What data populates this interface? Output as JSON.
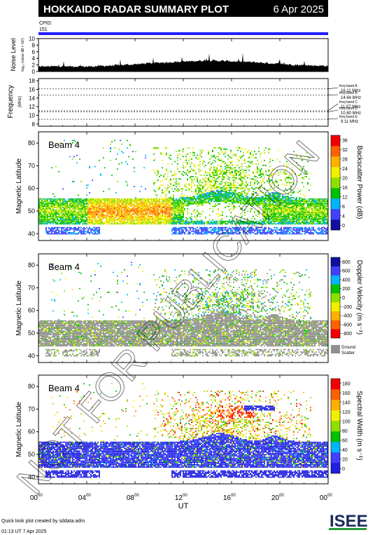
{
  "header": {
    "title": "HOKKAIDO RADAR SUMMARY PLOT",
    "date": "6 Apr 2025",
    "cpid_label": "CPID:",
    "cpid_value": "151"
  },
  "noise_panel": {
    "ylabel": "Noise Level",
    "ylabel_sub": "log₁₀ (noise dB × 10³)",
    "yticks": [
      "0",
      "2",
      "4",
      "6",
      "8",
      "10"
    ],
    "ylim": [
      0,
      10
    ]
  },
  "frequency_panel": {
    "ylabel": "Frequency",
    "ylabel_unit": "(MHz)",
    "yticks": [
      "8",
      "10",
      "12",
      "14",
      "16",
      "18"
    ],
    "ylim": [
      7.5,
      18.5
    ],
    "bands": [
      {
        "name": "freq band A",
        "value": "16.11 MHz",
        "mhz": 16.11
      },
      {
        "name": "freq band B",
        "value": "14.64 MHz",
        "mhz": 14.64
      },
      {
        "name": "freq band C",
        "value": "11.07 MHz",
        "mhz": 11.07
      },
      {
        "name": "freq band D",
        "value": "10.80 MHz",
        "mhz": 10.8
      },
      {
        "name": "freq band E",
        "value": "9.11 MHz",
        "mhz": 9.11
      }
    ]
  },
  "panels": [
    {
      "id": "power",
      "beam": "Beam  4",
      "ylabel": "Magnetic Latitude",
      "yticks": [
        "40",
        "50",
        "60",
        "70",
        "80"
      ],
      "colorbar_label": "Backscatter Power (dB)",
      "colorbar_ticks": [
        "0",
        "4",
        "8",
        "12",
        "16",
        "20",
        "24",
        "28",
        "32",
        "36"
      ],
      "colors": [
        "#1010a0",
        "#4040ff",
        "#00b4ff",
        "#00c000",
        "#8ee000",
        "#f0f000",
        "#ffb000",
        "#ff6000",
        "#f00000"
      ]
    },
    {
      "id": "velocity",
      "beam": "Beam  4",
      "ylabel": "Magnetic Latitude",
      "yticks": [
        "40",
        "50",
        "60",
        "70",
        "80"
      ],
      "colorbar_label": "Doppler Velocity (m s⁻¹)",
      "colorbar_ticks": [
        "-800",
        "-600",
        "-400",
        "-200",
        "0",
        "200",
        "400",
        "600",
        "800"
      ],
      "colors": [
        "#f00000",
        "#ff6000",
        "#ffb000",
        "#f0f000",
        "#8ee000",
        "#00c000",
        "#00b4ff",
        "#4040ff",
        "#1010a0"
      ],
      "ground_scatter_label": "Ground",
      "ground_scatter_label2": "Scatter",
      "ground_scatter_color": "#909090"
    },
    {
      "id": "width",
      "beam": "Beam  4",
      "ylabel": "Magnetic Latitude",
      "yticks": [
        "40",
        "50",
        "60",
        "70",
        "80"
      ],
      "colorbar_label": "Spectral Width (m s⁻¹)",
      "colorbar_ticks": [
        "0",
        "20",
        "40",
        "60",
        "80",
        "100",
        "120",
        "140",
        "160",
        "180"
      ],
      "colors": [
        "#2020e0",
        "#4040ff",
        "#00b4ff",
        "#00c000",
        "#8ee000",
        "#f0f000",
        "#ffb000",
        "#ff6000",
        "#f00000"
      ]
    }
  ],
  "xaxis": {
    "label": "UT",
    "ticks": [
      "00",
      "04",
      "08",
      "12",
      "16",
      "20",
      "00"
    ],
    "tick_sup": "00"
  },
  "watermark": "NOT FOR PUBLICATION",
  "footer": {
    "line1": "Quick look plot created by sddata.adm",
    "line2": "01:13 UT  7 Apr 2025"
  },
  "logo": {
    "text": "ISEE"
  },
  "chart_data": [
    {
      "type": "area",
      "title": "",
      "ylabel": "Noise Level",
      "ylim": [
        0,
        10
      ],
      "x_range_hours": [
        0,
        24
      ],
      "x": [
        0,
        2,
        4,
        6,
        8,
        10,
        12,
        14,
        16,
        18,
        20,
        22,
        24
      ],
      "values": [
        1.5,
        1.6,
        1.5,
        1.8,
        2.2,
        2.7,
        3.0,
        3.4,
        3.1,
        2.8,
        2.3,
        1.9,
        1.7
      ]
    },
    {
      "type": "line",
      "ylabel": "Frequency (MHz)",
      "ylim": [
        7.5,
        18.5
      ],
      "series": [
        {
          "name": "freq band A",
          "value_mhz": 16.11
        },
        {
          "name": "freq band B",
          "value_mhz": 14.64
        },
        {
          "name": "freq band C",
          "value_mhz": 11.07
        },
        {
          "name": "freq band D",
          "value_mhz": 10.8
        },
        {
          "name": "freq band E",
          "value_mhz": 9.11
        }
      ]
    },
    {
      "type": "heatmap",
      "title": "Beam 4",
      "ylabel": "Magnetic Latitude",
      "ylim": [
        37,
        85
      ],
      "zlabel": "Backscatter Power (dB)",
      "zlim": [
        0,
        36
      ]
    },
    {
      "type": "heatmap",
      "title": "Beam 4",
      "ylabel": "Magnetic Latitude",
      "ylim": [
        37,
        85
      ],
      "zlabel": "Doppler Velocity (m s⁻¹)",
      "zlim": [
        -800,
        800
      ]
    },
    {
      "type": "heatmap",
      "title": "Beam 4",
      "ylabel": "Magnetic Latitude",
      "ylim": [
        37,
        85
      ],
      "zlabel": "Spectral Width (m s⁻¹)",
      "zlim": [
        0,
        180
      ]
    }
  ]
}
